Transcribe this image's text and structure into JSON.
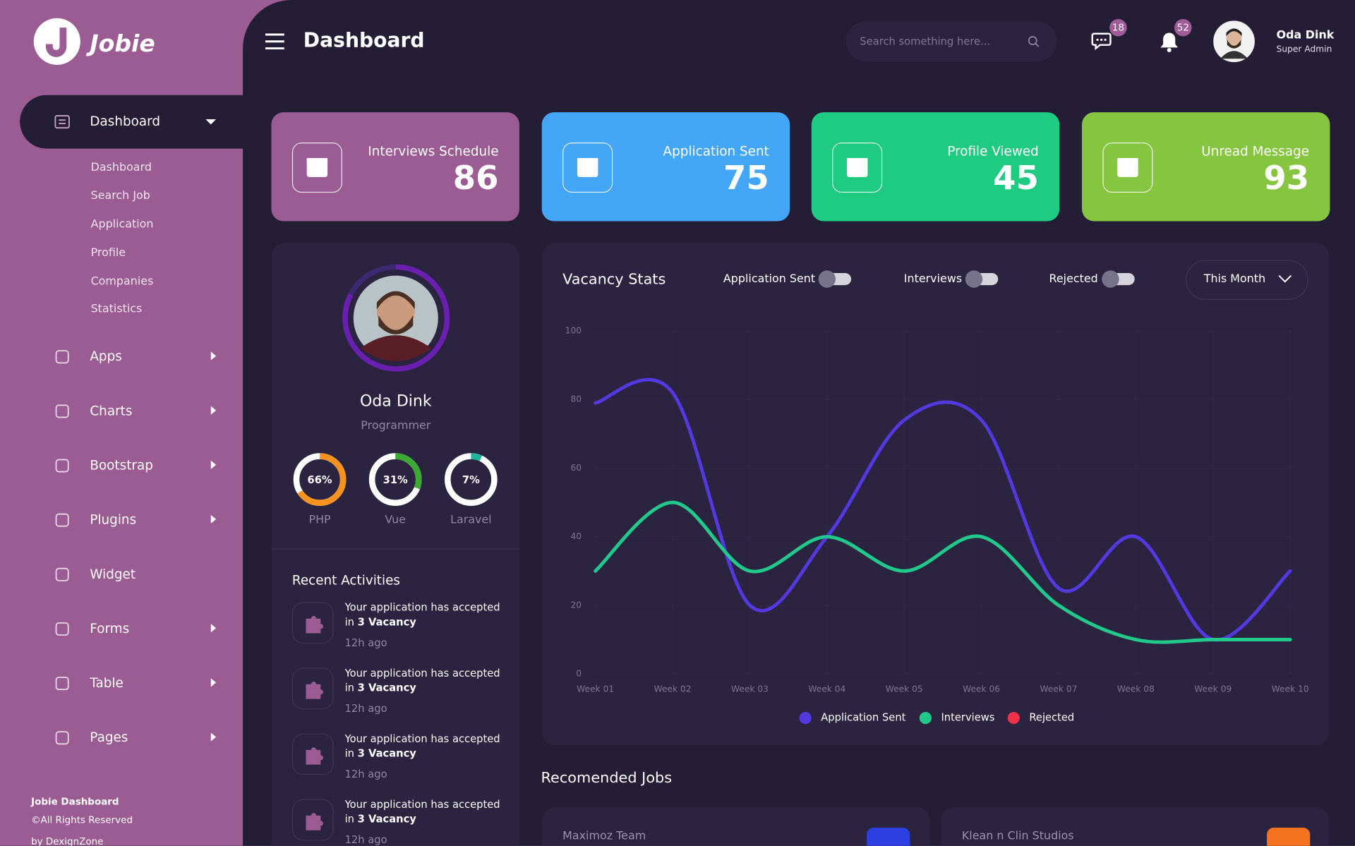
{
  "brand": {
    "logo": "Jobie"
  },
  "sidebar": {
    "active": "Dashboard",
    "submenu": [
      "Dashboard",
      "Search Job",
      "Application",
      "Profile",
      "Companies",
      "Statistics"
    ],
    "menu": [
      "Apps",
      "Charts",
      "Bootstrap",
      "Plugins",
      "Widget",
      "Forms",
      "Table",
      "Pages"
    ],
    "footer": {
      "title": "Jobie Dashboard",
      "rights": "©All Rights Reserved",
      "credit": "by DexignZone"
    }
  },
  "header": {
    "title": "Dashboard",
    "search_placeholder": "Search something here...",
    "messages_badge": "18",
    "notifications_badge": "52",
    "user_name": "Oda Dink",
    "user_role": "Super Admin"
  },
  "stats": [
    {
      "label": "Interviews Schedule",
      "value": "86"
    },
    {
      "label": "Application Sent",
      "value": "75"
    },
    {
      "label": "Profile Viewed",
      "value": "45"
    },
    {
      "label": "Unread Message",
      "value": "93"
    }
  ],
  "profile": {
    "name": "Oda Dink",
    "role": "Programmer",
    "skills": {
      "names": [
        "PHP",
        "Vue",
        "Laravel"
      ],
      "values": [
        66,
        31,
        7
      ],
      "value_labels": [
        "66%",
        "31%",
        "7%"
      ],
      "colors": [
        "#f7931e",
        "#3caa35",
        "#21b3a0"
      ]
    }
  },
  "recent_activities": {
    "title": "Recent Activities",
    "items": [
      {
        "text": "Your application has accepted",
        "text2": "in",
        "highlight": "3 Vacancy",
        "time": "12h ago"
      },
      {
        "text": "Your application has accepted",
        "text2": "in",
        "highlight": "3 Vacancy",
        "time": "12h ago"
      },
      {
        "text": "Your application has accepted",
        "text2": "in",
        "highlight": "3 Vacancy",
        "time": "12h ago"
      },
      {
        "text": "Your application has accepted",
        "text2": "in",
        "highlight": "3 Vacancy",
        "time": "12h ago"
      }
    ]
  },
  "vacancy": {
    "toggles": [
      "Application Sent",
      "Interviews",
      "Rejected"
    ],
    "period": "This Month",
    "chart_data": {
      "type": "line",
      "title": "Vacancy Stats",
      "smooth": true,
      "grid": true,
      "categories": [
        "Week 01",
        "Week 02",
        "Week 03",
        "Week 04",
        "Week 05",
        "Week 06",
        "Week 07",
        "Week 08",
        "Week 09",
        "Week 10"
      ],
      "ylim": [
        0,
        100
      ],
      "yticks": [
        0,
        20,
        40,
        60,
        80,
        100
      ],
      "series": [
        {
          "name": "Application Sent",
          "color": "#5438e0",
          "values": [
            79,
            82,
            20,
            40,
            74,
            74,
            25,
            40,
            10,
            30
          ]
        },
        {
          "name": "Interviews",
          "color": "#21c98b",
          "values": [
            30,
            50,
            30,
            40,
            30,
            40,
            20,
            10,
            10,
            10
          ]
        },
        {
          "name": "Rejected",
          "color": "#f0314a",
          "values": [
            null,
            null,
            null,
            null,
            null,
            null,
            null,
            null,
            null,
            null
          ]
        }
      ]
    }
  },
  "recommended": {
    "title": "Recomended Jobs",
    "jobs": [
      "Maximoz Team",
      "Klean n Clin Studios"
    ]
  }
}
